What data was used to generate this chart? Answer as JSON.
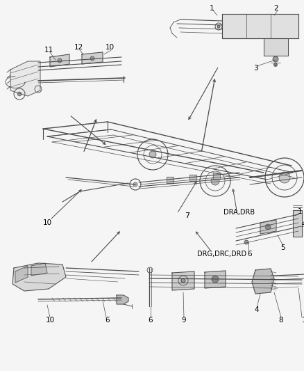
{
  "bg_color": "#f5f5f5",
  "line_color": "#4a4a4a",
  "text_color": "#000000",
  "fig_width": 4.39,
  "fig_height": 5.33,
  "dpi": 100,
  "gray_light": "#c8c8c8",
  "gray_mid": "#999999",
  "gray_dark": "#555555"
}
